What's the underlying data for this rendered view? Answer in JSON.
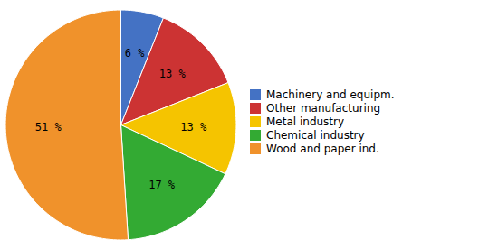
{
  "chart_data": {
    "type": "pie",
    "categories": [
      "Machinery and equipm.",
      "Other manufacturing",
      "Metal industry",
      "Chemical industry",
      "Wood and paper ind."
    ],
    "values": [
      6,
      13,
      13,
      17,
      51
    ],
    "value_labels": [
      "6 %",
      "13 %",
      "13 %",
      "17 %",
      "51 %"
    ],
    "colors": [
      "#4472C4",
      "#CC3333",
      "#F5C400",
      "#33AA33",
      "#F0922B"
    ],
    "data_labels": true,
    "legend": "right"
  }
}
